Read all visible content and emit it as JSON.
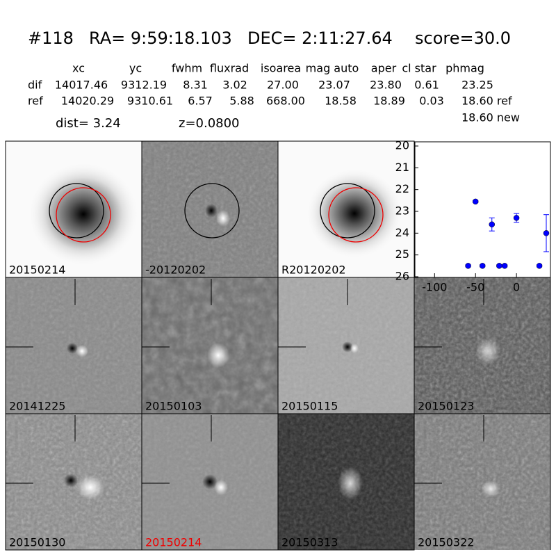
{
  "header": {
    "id": "#118",
    "ra": "RA= 9:59:18.103",
    "dec": "DEC= 2:11:27.64",
    "score": "score=30.0"
  },
  "table": {
    "columns": [
      "xc",
      "yc",
      "fwhm",
      "fluxrad",
      "isoarea",
      "mag auto",
      "aper",
      "cl star",
      "phmag"
    ],
    "rows": [
      [
        "dif",
        "14017.46",
        "9312.19",
        "8.31",
        "3.02",
        "27.00",
        "23.07",
        "23.80",
        "0.61",
        "23.25"
      ],
      [
        "ref",
        "14020.29",
        "9310.61",
        "6.57",
        "5.88",
        "668.00",
        "18.58",
        "18.89",
        "0.03",
        "18.60 ref"
      ]
    ],
    "extra": "18.60 new"
  },
  "info": {
    "dist": "dist=  3.24",
    "z": "z=0.0800"
  },
  "stamps": [
    "20150214",
    "-20120202",
    "R20120202",
    "20141225",
    "20150103",
    "20150115",
    "20150123",
    "20150130",
    "20150214",
    "20150313",
    "20150322"
  ],
  "chart_data": {
    "type": "scatter",
    "color": "#0000ff",
    "x": [
      -59,
      -50,
      -41.5,
      -30,
      -21,
      -14.4,
      0,
      28,
      36.4
    ],
    "values": [
      25.5,
      22.55,
      25.5,
      23.6,
      25.5,
      25.5,
      23.3,
      25.5,
      24.0
    ],
    "errors": [
      0.05,
      0.05,
      0.05,
      0.3,
      0.05,
      0.05,
      0.2,
      0.05,
      0.85
    ],
    "xlim": [
      -124,
      41.5
    ],
    "xticks": [
      -100,
      -50,
      0
    ],
    "ylim": [
      26,
      20
    ],
    "yticks": [
      20,
      21,
      22,
      23,
      24,
      25,
      26
    ]
  }
}
